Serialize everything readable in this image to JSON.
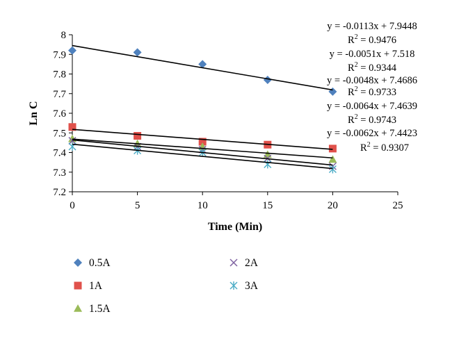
{
  "chart_data": {
    "type": "scatter",
    "xlabel": "Time (Min)",
    "ylabel": "Ln C",
    "xlim": [
      0,
      25
    ],
    "ylim": [
      7.2,
      8
    ],
    "xticks": [
      "0",
      "5",
      "10",
      "15",
      "20",
      "25"
    ],
    "yticks": [
      "7.2",
      "7.3",
      "7.4",
      "7.5",
      "7.6",
      "7.7",
      "7.8",
      "7.9",
      "8"
    ],
    "grid": false,
    "legend_position": "bottom",
    "x": [
      0,
      5,
      10,
      15,
      20
    ],
    "series": [
      {
        "name": "0.5A",
        "marker": "diamond",
        "color": "#4f81bd",
        "values": [
          7.92,
          7.91,
          7.85,
          7.77,
          7.71
        ],
        "trendline": {
          "slope": -0.0113,
          "intercept": 7.9448
        },
        "equation": "y = -0.0113x + 7.9448",
        "r2_value": "0.9476"
      },
      {
        "name": "1A",
        "marker": "square",
        "color": "#e0514b",
        "values": [
          7.53,
          7.485,
          7.455,
          7.44,
          7.42
        ],
        "trendline": {
          "slope": -0.0051,
          "intercept": 7.518
        },
        "equation": "y = -0.0051x + 7.518",
        "r2_value": "0.9344"
      },
      {
        "name": "1.5A",
        "marker": "triangle",
        "color": "#9bbb59",
        "values": [
          7.47,
          7.445,
          7.43,
          7.39,
          7.365
        ],
        "trendline": {
          "slope": -0.0048,
          "intercept": 7.4686
        },
        "equation": "y = -0.0048x + 7.4686",
        "r2_value": "0.9733"
      },
      {
        "name": "2A",
        "marker": "x",
        "color": "#8064a2",
        "values": [
          7.46,
          7.43,
          7.415,
          7.37,
          7.33
        ],
        "trendline": {
          "slope": -0.0064,
          "intercept": 7.4639
        },
        "equation": "y = -0.0064x + 7.4639",
        "r2_value": "0.9743"
      },
      {
        "name": "3A",
        "marker": "star",
        "color": "#4bacc6",
        "values": [
          7.43,
          7.41,
          7.4,
          7.34,
          7.315
        ],
        "trendline": {
          "slope": -0.0062,
          "intercept": 7.4423
        },
        "equation": "y = -0.0062x + 7.4423",
        "r2_value": "0.9307"
      }
    ]
  }
}
